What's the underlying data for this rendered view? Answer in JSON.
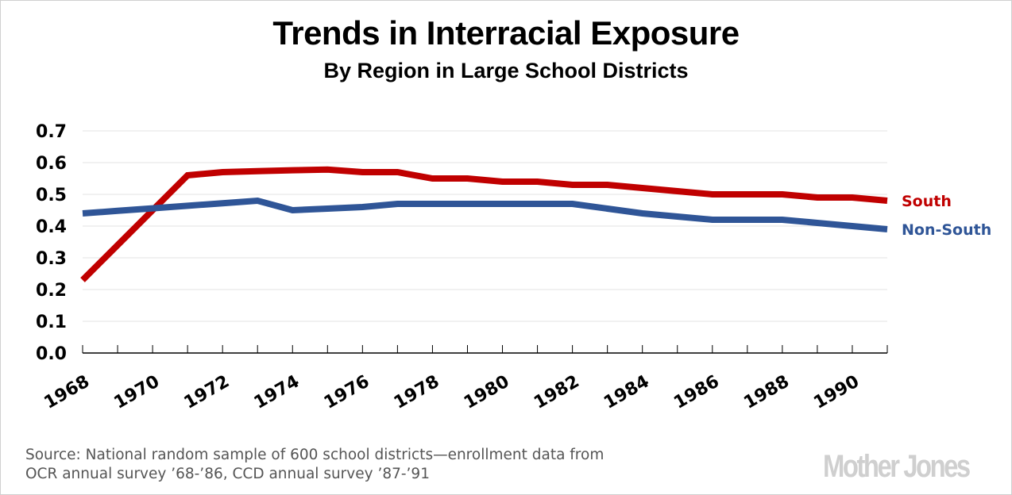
{
  "header": {
    "title": "Trends in Interracial Exposure",
    "subtitle": "By Region in Large School Districts"
  },
  "footer": {
    "source_line1": "Source: National random sample of 600 school districts—enrollment data from",
    "source_line2": "OCR annual survey ’68-’86, CCD annual survey ’87-’91",
    "logo": "Mother Jones"
  },
  "colors": {
    "south": "#c00000",
    "non_south": "#2f5597",
    "gridline": "#e3e3e3",
    "axis": "#000000"
  },
  "chart_data": {
    "type": "line",
    "title": "Trends in Interracial Exposure",
    "subtitle": "By Region in Large School Districts",
    "xlabel": "",
    "ylabel": "",
    "x": [
      1968,
      1969,
      1970,
      1971,
      1972,
      1973,
      1974,
      1975,
      1976,
      1977,
      1978,
      1979,
      1980,
      1981,
      1982,
      1983,
      1984,
      1985,
      1986,
      1987,
      1988,
      1989,
      1990,
      1991
    ],
    "xlim": [
      1968,
      1991
    ],
    "x_tick_labels": [
      "1968",
      "1970",
      "1972",
      "1974",
      "1976",
      "1978",
      "1980",
      "1982",
      "1984",
      "1986",
      "1988",
      "1990"
    ],
    "ylim": [
      0,
      0.7
    ],
    "y_tick_labels": [
      "0.0",
      "0.1",
      "0.2",
      "0.3",
      "0.4",
      "0.5",
      "0.6",
      "0.7"
    ],
    "y_ticks": [
      0,
      0.1,
      0.2,
      0.3,
      0.4,
      0.5,
      0.6,
      0.7
    ],
    "grid": true,
    "legend": "direct-labels-right",
    "series": [
      {
        "name": "South",
        "color": "#c00000",
        "values": [
          0.23,
          0.34,
          0.45,
          0.56,
          0.57,
          0.573,
          0.576,
          0.578,
          0.57,
          0.57,
          0.55,
          0.55,
          0.54,
          0.54,
          0.53,
          0.53,
          0.52,
          0.51,
          0.5,
          0.5,
          0.5,
          0.49,
          0.49,
          0.48
        ]
      },
      {
        "name": "Non-South",
        "color": "#2f5597",
        "values": [
          0.44,
          0.448,
          0.456,
          0.464,
          0.472,
          0.48,
          0.45,
          0.455,
          0.46,
          0.47,
          0.47,
          0.47,
          0.47,
          0.47,
          0.47,
          0.455,
          0.44,
          0.43,
          0.42,
          0.42,
          0.42,
          0.41,
          0.4,
          0.39
        ]
      }
    ]
  }
}
